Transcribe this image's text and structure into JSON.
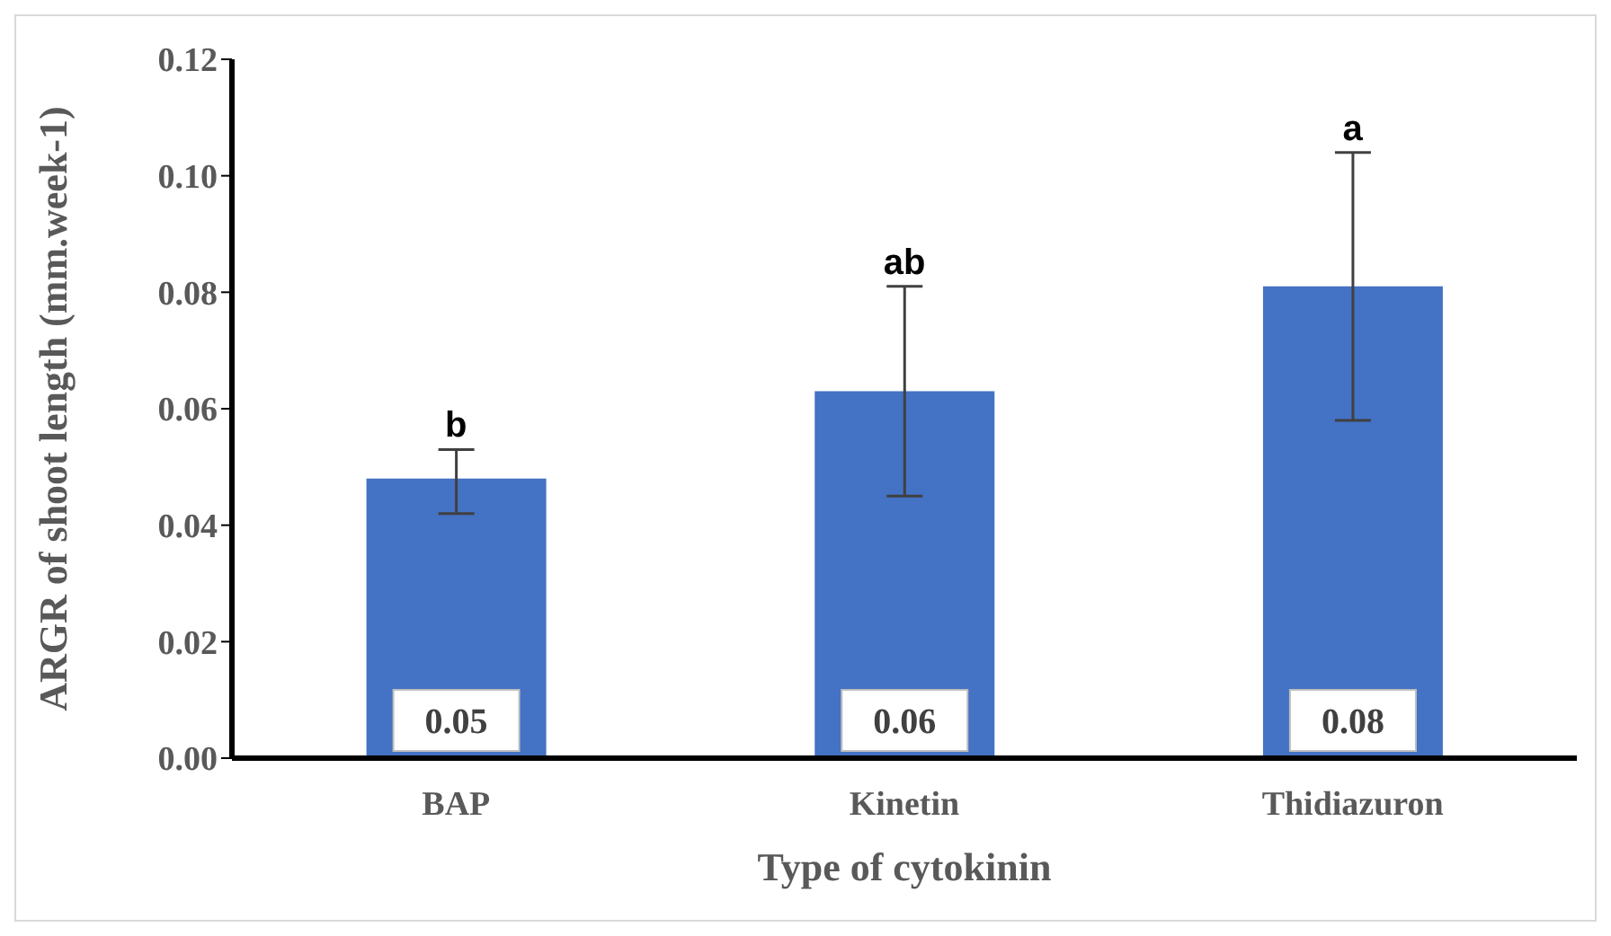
{
  "chart_data": {
    "type": "bar",
    "xlabel": "Type of cytokinin",
    "ylabel": "ARGR of shoot length (mm.week-1)",
    "categories": [
      "BAP",
      "Kinetin",
      "Thidiazuron"
    ],
    "values": [
      0.048,
      0.063,
      0.081
    ],
    "errors": [
      [
        0.042,
        0.053
      ],
      [
        0.045,
        0.081
      ],
      [
        0.058,
        0.104
      ]
    ],
    "value_labels": [
      "0.05",
      "0.06",
      "0.08"
    ],
    "color": "#4472c4",
    "ylim": [
      0,
      0.12
    ],
    "yticks": [
      {
        "value": 0,
        "label": "0.00"
      },
      {
        "value": 0.02,
        "label": "0.02"
      },
      {
        "value": 0.04,
        "label": "0.04"
      },
      {
        "value": 0.06,
        "label": "0.06"
      },
      {
        "value": 0.08,
        "label": "0.08"
      },
      {
        "value": 0.1,
        "label": "0.10"
      },
      {
        "value": 0.12,
        "label": "0.12"
      }
    ],
    "annotations": [
      {
        "text": "b",
        "x": "BAP",
        "y": 0.053
      },
      {
        "text": "ab",
        "x": "Kinetin",
        "y": 0.081
      },
      {
        "text": "a",
        "x": "Thidiazuron",
        "y": 0.104
      }
    ],
    "grid": false,
    "legend": false
  }
}
